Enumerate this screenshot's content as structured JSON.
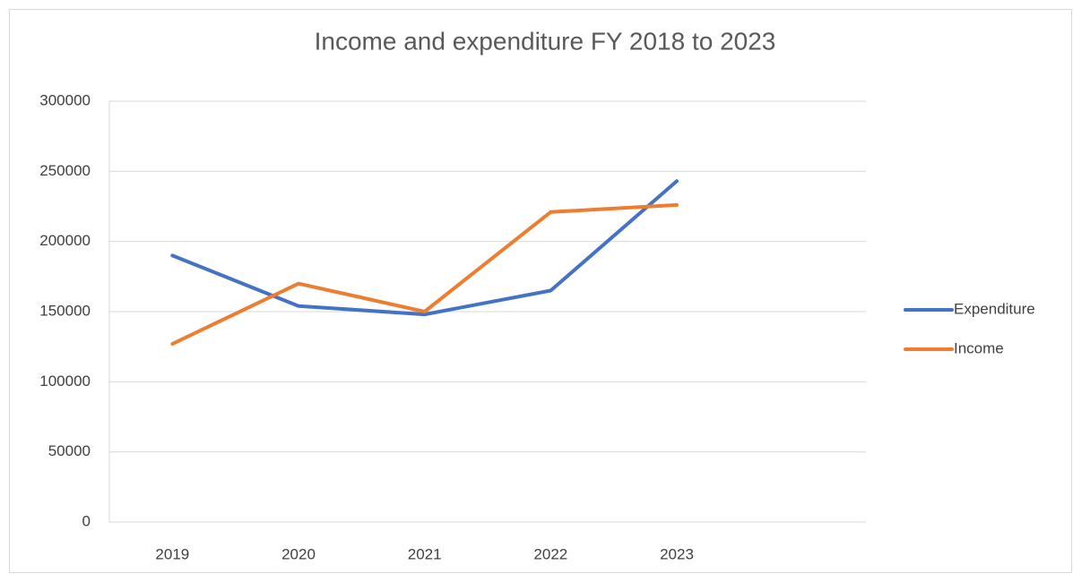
{
  "chart_data": {
    "type": "line",
    "title": "Income and expenditure FY 2018 to 2023",
    "categories": [
      "2019",
      "2020",
      "2021",
      "2022",
      "2023",
      null
    ],
    "series": [
      {
        "name": "Expenditure",
        "color": "#4472c4",
        "values": [
          190000,
          154000,
          148000,
          165000,
          243000,
          null
        ]
      },
      {
        "name": "Income",
        "color": "#ed7d31",
        "values": [
          127000,
          170000,
          150000,
          221000,
          226000,
          null
        ]
      }
    ],
    "ylim": [
      0,
      300000
    ],
    "yticks": [
      0,
      50000,
      100000,
      150000,
      200000,
      250000,
      300000
    ],
    "grid": true,
    "legend": "right"
  }
}
